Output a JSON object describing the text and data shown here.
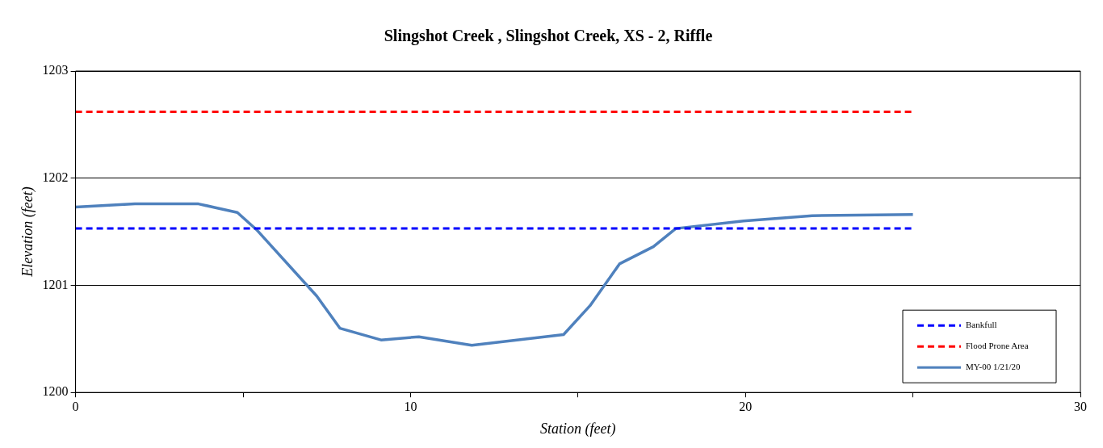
{
  "chart_data": {
    "type": "line",
    "title": "Slingshot Creek , Slingshot Creek, XS - 2, Riffle",
    "xlabel": "Station (feet)",
    "ylabel": "Elevation (feet)",
    "xlim": [
      0,
      30
    ],
    "xticks": [
      0,
      {
        "value": 5,
        "label": null
      },
      10,
      {
        "value": 15,
        "label": null
      },
      20,
      {
        "value": 25,
        "label": null
      },
      30
    ],
    "ylim": [
      1200,
      1203
    ],
    "yticks": [
      1200,
      1201,
      1202,
      1203
    ],
    "grid": "y",
    "legend": "bottom right",
    "marker": "none",
    "series": [
      {
        "name": "Bankfull",
        "color": "#0000ff",
        "line_style": "dashed",
        "x": [
          0,
          25
        ],
        "values": [
          1201.53,
          1201.53
        ]
      },
      {
        "name": "Flood Prone Area",
        "color": "#ff0000",
        "line_style": "dashed",
        "x": [
          0,
          25
        ],
        "values": [
          1202.62,
          1202.62
        ]
      },
      {
        "name": "MY-00 1/21/20",
        "color": "#4f81bd",
        "line_style": "solid",
        "x": [
          0,
          1.77,
          3.67,
          4.83,
          5.4,
          7.2,
          7.89,
          9.12,
          10.25,
          11.83,
          14.57,
          15.36,
          16.24,
          17.25,
          17.92,
          19.94,
          21.99,
          25
        ],
        "values": [
          1201.73,
          1201.76,
          1201.76,
          1201.68,
          1201.52,
          1200.9,
          1200.6,
          1200.49,
          1200.52,
          1200.44,
          1200.54,
          1200.81,
          1201.2,
          1201.36,
          1201.53,
          1201.6,
          1201.65,
          1201.66
        ]
      }
    ]
  }
}
